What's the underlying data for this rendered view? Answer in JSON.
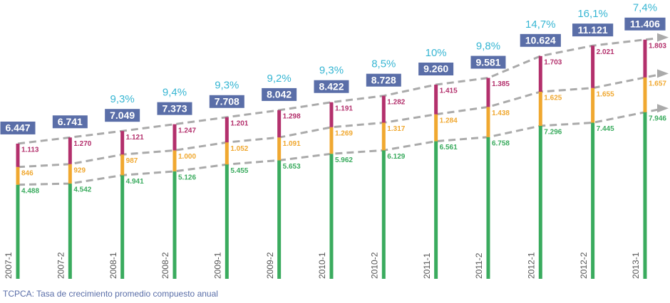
{
  "chart_data": {
    "type": "stacked_bar",
    "categories": [
      "2007-1",
      "2007-2",
      "2008-1",
      "2008-2",
      "2009-1",
      "2009-2",
      "2010-1",
      "2010-2",
      "2011-1",
      "2011-2",
      "2012-1",
      "2012-2",
      "2013-1"
    ],
    "series": [
      {
        "color": "#3aab5e",
        "values": [
          4488,
          4542,
          4941,
          5126,
          5455,
          5653,
          5962,
          6129,
          6561,
          6758,
          7296,
          7445,
          7946
        ],
        "value_labels": [
          "4.488",
          "4.542",
          "4.941",
          "5.126",
          "5.455",
          "5.653",
          "5.962",
          "6.129",
          "6.561",
          "6.758",
          "7.296",
          "7.445",
          "7.946"
        ]
      },
      {
        "color": "#f0a830",
        "values": [
          846,
          929,
          987,
          1000,
          1052,
          1091,
          1269,
          1317,
          1284,
          1438,
          1625,
          1655,
          1657
        ],
        "value_labels": [
          "846",
          "929",
          "987",
          "1.000",
          "1.052",
          "1.091",
          "1.269",
          "1.317",
          "1.284",
          "1.438",
          "1.625",
          "1.655",
          "1.657"
        ]
      },
      {
        "color": "#b3306c",
        "values": [
          1113,
          1270,
          1121,
          1247,
          1201,
          1298,
          1191,
          1282,
          1415,
          1385,
          1703,
          2021,
          1803
        ],
        "value_labels": [
          "1.113",
          "1.270",
          "1.121",
          "1.247",
          "1.201",
          "1.298",
          "1.191",
          "1.282",
          "1.415",
          "1.385",
          "1.703",
          "2.021",
          "1.803"
        ]
      }
    ],
    "totals": {
      "color": "#5a6ea8",
      "values": [
        6447,
        6741,
        7049,
        7373,
        7708,
        8042,
        8422,
        8728,
        9260,
        9581,
        10624,
        11121,
        11406
      ],
      "value_labels": [
        "6.447",
        "6.741",
        "7.049",
        "7.373",
        "7.708",
        "8.042",
        "8.422",
        "8.728",
        "9.260",
        "9.581",
        "10.624",
        "11.121",
        "11.406"
      ]
    },
    "growth": {
      "values": [
        null,
        null,
        9.3,
        9.4,
        9.3,
        9.2,
        9.3,
        8.5,
        10,
        9.8,
        14.7,
        16.1,
        7.4
      ],
      "value_labels": [
        null,
        null,
        "9,3%",
        "9,4%",
        "9,3%",
        "9,2%",
        "9,3%",
        "8,5%",
        "10%",
        "9,8%",
        "14,7%",
        "16,1%",
        "7,4%"
      ]
    },
    "footnote": "TCPCA: Tasa de crecimiento promedio compuesto anual"
  }
}
